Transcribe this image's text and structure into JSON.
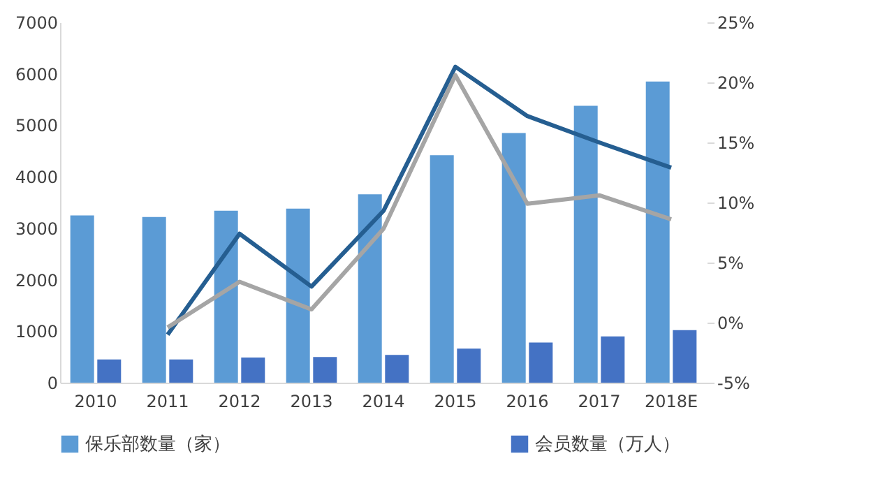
{
  "chart_data": {
    "type": "bar",
    "categories": [
      "2010",
      "2011",
      "2012",
      "2013",
      "2014",
      "2015",
      "2016",
      "2017",
      "2018E"
    ],
    "series": [
      {
        "name": "保乐部数量（家）",
        "color": "#5b9bd5",
        "values": [
          3250,
          3220,
          3340,
          3380,
          3660,
          4420,
          4850,
          5380,
          5850
        ]
      },
      {
        "name": "会员数量（万人）",
        "color": "#4472c4",
        "values": [
          450,
          450,
          490,
          500,
          540,
          660,
          780,
          900,
          1020
        ]
      },
      {
        "type": "line",
        "axis": "y2",
        "color": "#255e91",
        "values": [
          null,
          -1.0,
          7.4,
          3.0,
          9.3,
          21.3,
          17.2,
          15.0,
          12.9
        ]
      },
      {
        "type": "line",
        "axis": "y2",
        "color": "#a5a5a5",
        "values": [
          null,
          -0.4,
          3.4,
          1.1,
          7.8,
          20.6,
          9.9,
          10.6,
          8.6
        ]
      }
    ],
    "ylim": [
      0,
      7000
    ],
    "yticks": [
      0,
      1000,
      2000,
      3000,
      4000,
      5000,
      6000,
      7000
    ],
    "y2lim": [
      -5,
      25
    ],
    "y2ticks": [
      {
        "value": -5,
        "label": "-5%"
      },
      {
        "value": 0,
        "label": "0%"
      },
      {
        "value": 5,
        "label": "5%"
      },
      {
        "value": 10,
        "label": "10%"
      },
      {
        "value": 15,
        "label": "15%"
      },
      {
        "value": 20,
        "label": "20%"
      },
      {
        "value": 25,
        "label": "25%"
      }
    ],
    "grid": false,
    "legend": "bottom",
    "marker": "none",
    "line_style": "solid"
  }
}
